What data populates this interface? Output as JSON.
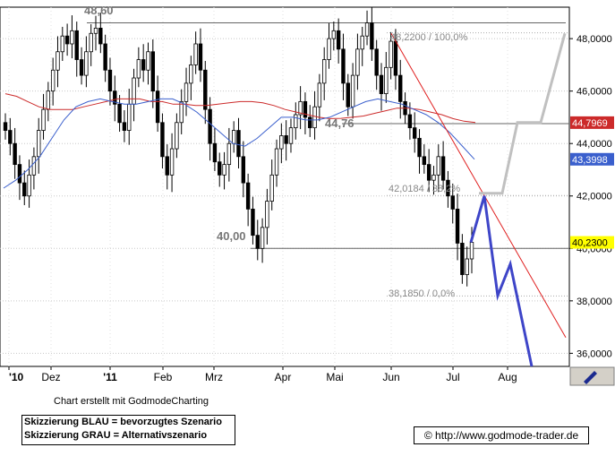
{
  "chart_data": {
    "type": "candlestick",
    "x_labels": [
      "'10",
      "Dez",
      "'11",
      "Feb",
      "Mrz",
      "Apr",
      "Mai",
      "Jun",
      "Jul",
      "Aug"
    ],
    "y_ticks": [
      36,
      38,
      40,
      42,
      44,
      46,
      48
    ],
    "y_tick_labels": [
      "36,0000",
      "38,0000",
      "40,0000",
      "42,0000",
      "44,0000",
      "46,0000",
      "48,0000"
    ],
    "ylim": [
      35.5,
      49.2
    ],
    "price_labels": {
      "current": "40,2300",
      "ma_red": "44,7969",
      "ma_blue": "43,3998"
    },
    "annotations": {
      "high": "48,60",
      "mid": "44,76",
      "low": "40,00",
      "fib_100": "48,2200 / 100,0%",
      "fib_382": "42,0184 / 38,2%",
      "fib_0": "38,1850 / 0,0%"
    },
    "horizontal_lines": [
      48.6,
      44.76,
      40.0
    ],
    "fib_levels": [
      48.22,
      42.0184,
      38.185
    ],
    "close_series": [
      44.5,
      44.0,
      43.2,
      42.5,
      42.0,
      42.8,
      43.5,
      44.5,
      45.3,
      46.0,
      46.8,
      47.5,
      48.1,
      47.8,
      48.3,
      47.2,
      46.6,
      47.5,
      48.2,
      48.4,
      47.8,
      46.8,
      46.0,
      45.5,
      44.8,
      44.5,
      45.5,
      46.5,
      47.2,
      46.8,
      47.5,
      46.0,
      44.8,
      43.5,
      42.8,
      43.8,
      44.8,
      45.6,
      46.3,
      47.0,
      47.8,
      46.8,
      45.3,
      44.0,
      43.3,
      42.8,
      43.2,
      44.0,
      44.5,
      43.5,
      42.5,
      41.5,
      40.5,
      40.0,
      40.8,
      41.8,
      42.8,
      43.8,
      44.3,
      44.0,
      44.6,
      45.1,
      45.6,
      45.0,
      44.6,
      45.4,
      46.3,
      47.2,
      48.0,
      48.3,
      47.6,
      46.3,
      45.4,
      46.6,
      47.6,
      48.1,
      48.6,
      47.6,
      46.6,
      45.9,
      46.9,
      47.9,
      46.6,
      45.6,
      45.1,
      44.6,
      44.2,
      43.5,
      43.2,
      42.6,
      42.8,
      43.5,
      42.6,
      42.0,
      41.5,
      40.2,
      39.0,
      39.6,
      40.23
    ],
    "ma_red": [
      45.9,
      45.8,
      45.6,
      45.4,
      45.3,
      45.3,
      45.3,
      45.4,
      45.5,
      45.6,
      45.7,
      45.7,
      45.7,
      45.6,
      45.6,
      45.5,
      45.5,
      45.45,
      45.45,
      45.5,
      45.55,
      45.6,
      45.6,
      45.55,
      45.45,
      45.3,
      45.2,
      45.1,
      45.0,
      44.95,
      44.96,
      45.0,
      45.05,
      45.15,
      45.25,
      45.35,
      45.35,
      45.3,
      45.2,
      45.1,
      44.95,
      44.85,
      44.8
    ],
    "ma_blue": [
      42.3,
      42.6,
      43.0,
      43.5,
      44.2,
      44.9,
      45.4,
      45.6,
      45.7,
      45.6,
      45.5,
      45.5,
      45.6,
      45.7,
      45.7,
      45.5,
      45.2,
      44.8,
      44.4,
      44.0,
      43.9,
      44.2,
      44.6,
      45.0,
      45.0,
      44.9,
      44.9,
      45.0,
      45.2,
      45.4,
      45.6,
      45.7,
      45.6,
      45.5,
      45.3,
      45.1,
      44.8,
      44.4,
      43.9,
      43.4
    ],
    "scenario_blue": [
      [
        40.23,
        0
      ],
      [
        42.0,
        2
      ],
      [
        38.2,
        4
      ],
      [
        39.4,
        6
      ],
      [
        35.5,
        10
      ]
    ],
    "scenario_grey": [
      [
        42.1,
        0
      ],
      [
        42.1,
        3
      ],
      [
        44.8,
        6
      ],
      [
        44.8,
        9
      ],
      [
        48.2,
        12
      ]
    ],
    "trendline": [
      [
        48.2,
        0
      ],
      [
        36.6,
        1
      ]
    ]
  },
  "footer": {
    "credit": "Chart erstellt mit GodmodeCharting",
    "legend_blue": "Skizzierung BLAU = bevorzugtes Szenario",
    "legend_grey": "Skizzierung GRAU = Alternativszenario",
    "url": "© http://www.godmode-trader.de"
  }
}
